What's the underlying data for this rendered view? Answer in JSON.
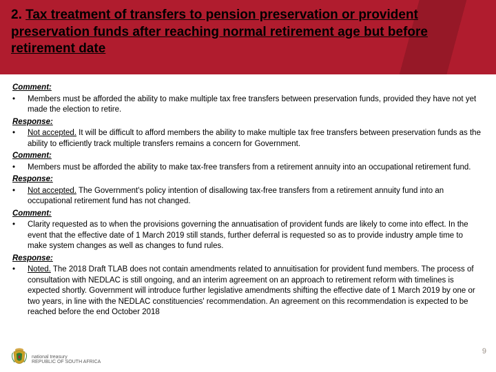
{
  "header": {
    "title_prefix": "2. ",
    "title_main": "Tax treatment of transfers to pension preservation or provident preservation funds after reaching normal retirement age but before retirement date",
    "band_color": "#b01c2e",
    "title_color": "#000000",
    "title_fontsize": 19
  },
  "sections": [
    {
      "type": "label",
      "text": "Comment:"
    },
    {
      "type": "bullet",
      "lead": "",
      "text": "Members must be afforded the ability to make multiple tax free transfers between preservation funds, provided they have not yet made the election to retire."
    },
    {
      "type": "label",
      "text": "Response:"
    },
    {
      "type": "bullet",
      "lead": "Not accepted.",
      "text": " It will be difficult to afford members the ability to make multiple tax free transfers between preservation funds as the ability to efficiently track multiple transfers remains a concern for Government."
    },
    {
      "type": "label",
      "text": "Comment:"
    },
    {
      "type": "bullet",
      "lead": "",
      "text": "Members must be afforded the ability to make tax-free transfers from a retirement annuity into an occupational retirement fund."
    },
    {
      "type": "label",
      "text": "Response:"
    },
    {
      "type": "bullet",
      "lead": "Not accepted.",
      "text": " The Government's policy intention of disallowing tax-free transfers from a retirement annuity fund into an occupational retirement fund has not changed."
    },
    {
      "type": "label",
      "text": "Comment:"
    },
    {
      "type": "bullet",
      "lead": "",
      "text": "Clarity requested as to when the provisions governing the annuatisation of provident funds are likely to come into effect. In the event that the effective date of 1 March 2019 still stands, further deferral is requested so as to provide industry ample time to make system changes as well as changes to fund rules."
    },
    {
      "type": "label",
      "text": "Response:"
    },
    {
      "type": "bullet",
      "lead": "Noted.",
      "text": " The 2018 Draft TLAB does not contain amendments related to annuitisation for provident fund members.  The process of consultation with NEDLAC is still ongoing, and an interim agreement on an approach to retirement reform with timelines is expected shortly.  Government will introduce further legislative amendments shifting the effective date of 1 March 2019 by one or two years, in line with the NEDLAC constituencies' recommendation. An agreement on this recommendation is expected to be reached before the end October 2018"
    }
  ],
  "footer": {
    "page_number": "9",
    "dept_line1": "national treasury",
    "dept_line2": "REPUBLIC OF SOUTH AFRICA",
    "page_num_color": "#998f85"
  },
  "style": {
    "body_fontsize": 11.5,
    "body_color": "#000000",
    "background_color": "#ffffff"
  }
}
